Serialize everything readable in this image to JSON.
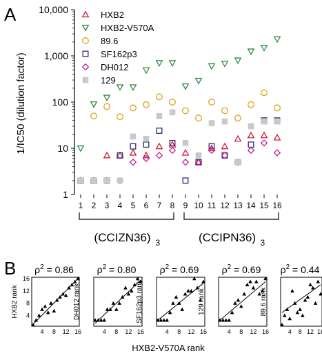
{
  "panel_a": {
    "label": "A",
    "chart_data": {
      "type": "scatter",
      "ylabel": "1/IC50 (dilution factor)",
      "xlabel": "",
      "yscale": "log",
      "ylim": [
        1,
        10000
      ],
      "y_ticks": [
        "1",
        "10",
        "100",
        "1,000",
        "10,000"
      ],
      "x": [
        1,
        2,
        3,
        4,
        5,
        6,
        7,
        8,
        9,
        10,
        11,
        12,
        13,
        14,
        15,
        16
      ],
      "x_tick_labels": [
        "1",
        "2",
        "3",
        "4",
        "5",
        "6",
        "7",
        "8",
        "9",
        "10",
        "11",
        "12",
        "13",
        "14",
        "15",
        "16"
      ],
      "groups": [
        {
          "label": "(CCIZN36)",
          "subscript": "3",
          "from": 1,
          "to": 8
        },
        {
          "label": "(CCIPN36)",
          "subscript": "3",
          "from": 9,
          "to": 16
        }
      ],
      "legend_position": "top-left",
      "series": [
        {
          "name": "HXB2",
          "marker": "triangle-up",
          "color": "#d01c3a",
          "values": [
            2,
            2,
            7,
            7,
            8,
            7,
            11,
            12,
            8,
            5,
            10,
            11,
            16,
            19,
            19,
            17
          ]
        },
        {
          "name": "HXB2-V570A",
          "marker": "triangle-down",
          "color": "#2e8b3e",
          "values": [
            10,
            90,
            125,
            210,
            210,
            490,
            700,
            700,
            220,
            290,
            600,
            680,
            800,
            1250,
            1500,
            2300
          ]
        },
        {
          "name": "89.6",
          "marker": "circle",
          "color": "#e0a020",
          "values": [
            null,
            50,
            80,
            48,
            75,
            88,
            130,
            100,
            65,
            45,
            100,
            65,
            45,
            88,
            160,
            75
          ]
        },
        {
          "name": "SF162p3",
          "marker": "square",
          "color": "#2a2a7a",
          "values": [
            2,
            2,
            2,
            7,
            11,
            12,
            24,
            13,
            2,
            5,
            11,
            7,
            5,
            12,
            40,
            40
          ]
        },
        {
          "name": "DH012",
          "marker": "diamond",
          "color": "#c0209a",
          "values": [
            2,
            2,
            2,
            2,
            5,
            6,
            7,
            9,
            5,
            5,
            9,
            7,
            5,
            9,
            13,
            8
          ]
        },
        {
          "name": "129",
          "marker": "square-shaded",
          "color": "#c8c8c8",
          "values": [
            2,
            2,
            2,
            2,
            18,
            16,
            50,
            60,
            13,
            7,
            35,
            38,
            5,
            30,
            38,
            38
          ]
        }
      ]
    }
  },
  "panel_b": {
    "label": "B",
    "shared_xlabel": "HXB2-V570A rank",
    "chart_data": [
      {
        "type": "scatter",
        "ylabel": "HXB2 rank",
        "annotation": "ρ2 = 0.86",
        "rho_sq": "0.86",
        "xlim": [
          1,
          16
        ],
        "ylim": [
          1,
          16
        ],
        "x_ticks": [
          4,
          8,
          12,
          16
        ],
        "y_ticks": [
          4,
          8,
          12,
          16
        ],
        "x": [
          1,
          2,
          3,
          4,
          5,
          6,
          7,
          8,
          9,
          10,
          11,
          12,
          13,
          14,
          15,
          16
        ],
        "y": [
          1,
          2.5,
          4,
          6,
          7,
          5,
          8,
          5.5,
          9,
          10,
          11,
          10.5,
          13,
          14,
          15,
          16
        ],
        "fit": [
          [
            1,
            1.2
          ],
          [
            16,
            16
          ]
        ]
      },
      {
        "type": "scatter",
        "ylabel": "DH012 rank",
        "annotation": "ρ2 = 0.80",
        "rho_sq": "0.80",
        "xlim": [
          1,
          16
        ],
        "ylim": [
          1,
          16
        ],
        "x_ticks": [
          4,
          8,
          12,
          16
        ],
        "y_ticks": [
          4,
          8,
          12,
          16
        ],
        "x": [
          1,
          2,
          3,
          4,
          5,
          6,
          7,
          8,
          9,
          10,
          11,
          12,
          13,
          14,
          15,
          16
        ],
        "y": [
          2.5,
          2.5,
          2.5,
          2.5,
          6,
          6,
          8,
          6,
          8,
          10,
          13,
          11,
          12,
          14,
          16,
          15
        ],
        "fit": [
          [
            1,
            1.5
          ],
          [
            16,
            15.5
          ]
        ]
      },
      {
        "type": "scatter",
        "ylabel": "SF162p3 rank",
        "annotation": "ρ2 = 0.69",
        "rho_sq": "0.69",
        "xlim": [
          1,
          16
        ],
        "ylim": [
          1,
          16
        ],
        "x_ticks": [
          4,
          8,
          12,
          16
        ],
        "y_ticks": [
          4,
          8,
          12,
          16
        ],
        "x": [
          1,
          2,
          3,
          4,
          5,
          6,
          7,
          8,
          9,
          10,
          11,
          12,
          13,
          14,
          15,
          16
        ],
        "y": [
          2.5,
          2.5,
          2.5,
          2.5,
          5,
          8,
          10,
          8,
          6,
          11,
          12,
          12,
          16,
          13,
          9,
          15
        ],
        "fit": [
          [
            1,
            2.5
          ],
          [
            16,
            14.5
          ]
        ]
      },
      {
        "type": "scatter",
        "ylabel": "129 rank",
        "annotation": "ρ2 = 0.69",
        "rho_sq": "0.69",
        "xlim": [
          1,
          16
        ],
        "ylim": [
          1,
          16
        ],
        "x_ticks": [
          4,
          8,
          12,
          16
        ],
        "y_ticks": [
          4,
          8,
          12,
          16
        ],
        "x": [
          1,
          2,
          3,
          4,
          5,
          6,
          7,
          8,
          9,
          10,
          11,
          12,
          13,
          14,
          15,
          16
        ],
        "y": [
          2.5,
          2.5,
          2.5,
          2.5,
          5,
          8,
          9,
          7,
          11,
          14,
          15,
          13,
          15,
          11,
          12,
          16
        ],
        "fit": [
          [
            1,
            2.5
          ],
          [
            16,
            15
          ]
        ]
      },
      {
        "type": "scatter",
        "ylabel": "89.6 rank",
        "annotation": "ρ2 = 0.44",
        "rho_sq": "0.44",
        "xlim": [
          1,
          16
        ],
        "ylim": [
          1,
          16
        ],
        "x_ticks": [
          4,
          8,
          12,
          16
        ],
        "y_ticks": [
          4,
          8,
          12,
          16
        ],
        "x": [
          1,
          2,
          3,
          4,
          5,
          6,
          7,
          8,
          9,
          10,
          11,
          12,
          13,
          14,
          15,
          16
        ],
        "y": [
          1,
          4,
          6,
          3,
          12,
          8,
          5,
          6,
          4,
          9,
          10,
          14,
          13,
          8,
          15,
          11
        ],
        "fit": [
          [
            1,
            5
          ],
          [
            16,
            14
          ]
        ]
      }
    ]
  }
}
